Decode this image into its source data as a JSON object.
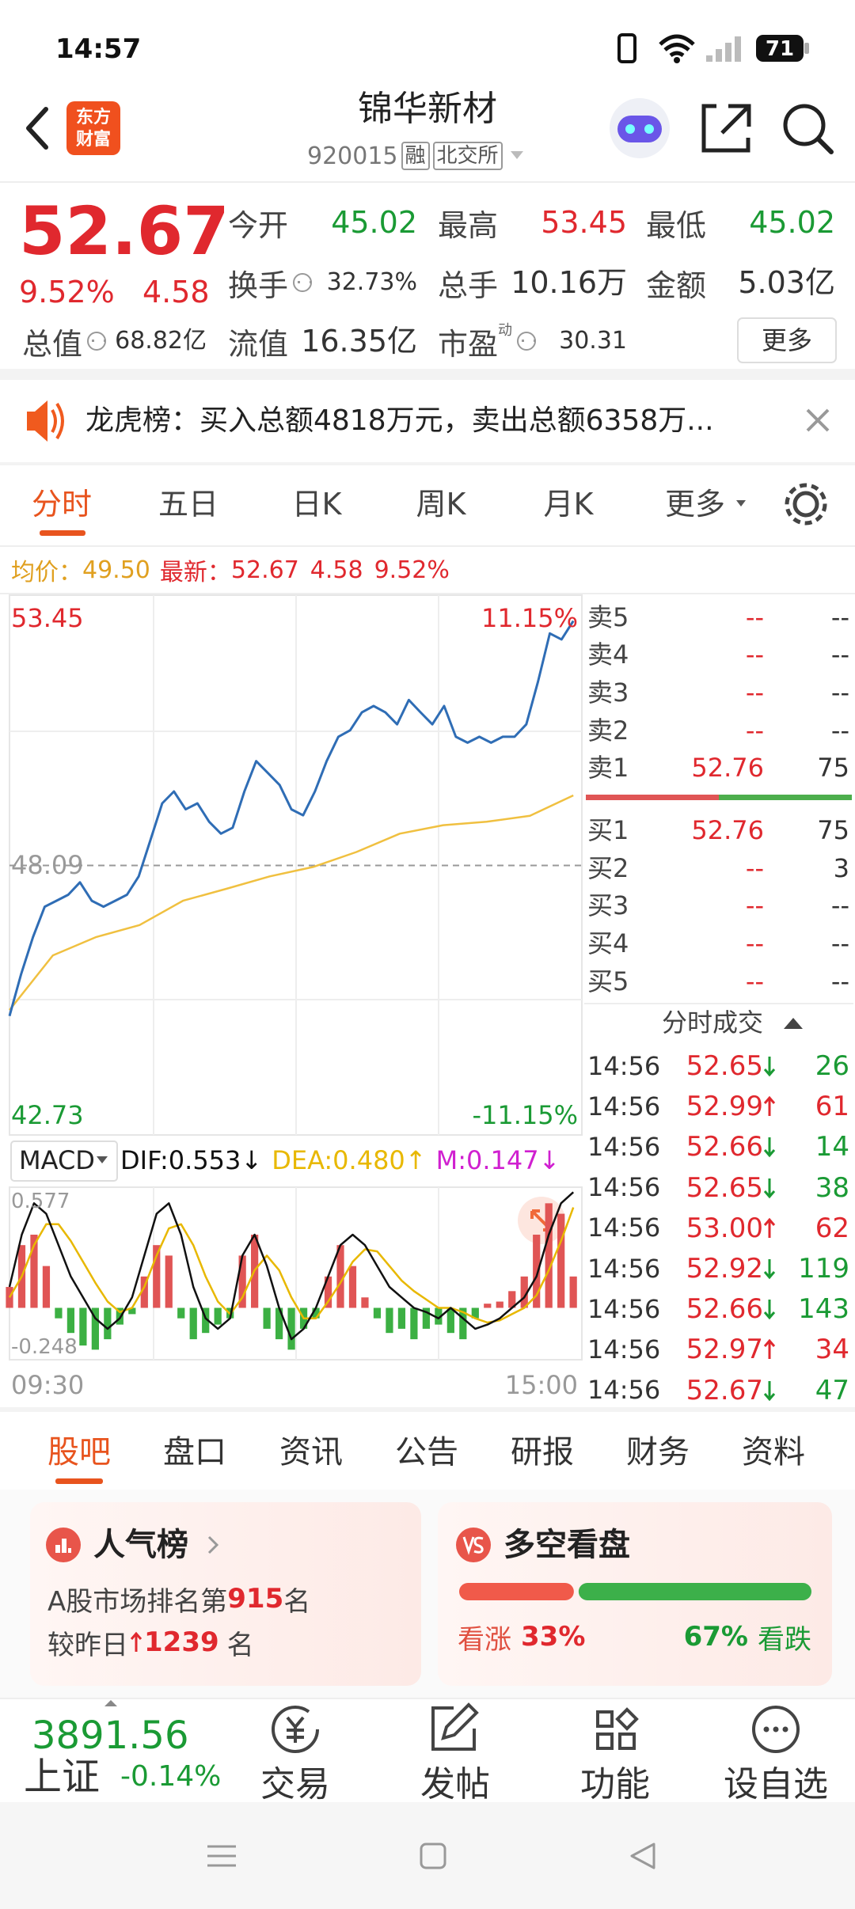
{
  "status_bar": {
    "time": "14:57",
    "battery": "71"
  },
  "header": {
    "logo_top": "东方",
    "logo_bottom": "财富",
    "title": "锦华新材",
    "code": "920015",
    "badges": [
      "融",
      "北交所"
    ]
  },
  "quote": {
    "price": "52.67",
    "change_pct": "9.52%",
    "change": "4.58",
    "fields": [
      {
        "label": "今开",
        "value": "45.02",
        "color": "#1a9a34"
      },
      {
        "label": "最高",
        "value": "53.45",
        "color": "#e0282e"
      },
      {
        "label": "最低",
        "value": "45.02",
        "color": "#1a9a34"
      },
      {
        "label": "换手",
        "value": "32.73%",
        "color": "#333333",
        "info": true
      },
      {
        "label": "总手",
        "value": "10.16万",
        "color": "#333333"
      },
      {
        "label": "金额",
        "value": "5.03亿",
        "color": "#333333"
      },
      {
        "label": "总值",
        "value": "68.82亿",
        "color": "#333333",
        "info": true
      },
      {
        "label": "流值",
        "value": "16.35亿",
        "color": "#333333"
      },
      {
        "label": "市盈",
        "sup": "动",
        "value": "30.31",
        "color": "#333333",
        "info": true
      }
    ],
    "more": "更多"
  },
  "notice": {
    "text": "龙虎榜：买入总额4818万元，卖出总额6358万..."
  },
  "chart_tabs": [
    "分时",
    "五日",
    "日K",
    "周K",
    "月K",
    "更多"
  ],
  "intraday": {
    "avg_label": "均价：",
    "avg": "49.50",
    "latest_label": "最新：",
    "latest": "52.67",
    "change": "4.58",
    "change_pct": "9.52%",
    "ylim": [
      42.73,
      53.45
    ],
    "prev_close": 48.09,
    "pct_top": "11.15%",
    "pct_bottom": "-11.15%",
    "time_start": "09:30",
    "time_end": "15:00",
    "price_color": "#2f6db5",
    "avg_color": "#f0c040",
    "price": [
      45.06,
      45.91,
      46.65,
      47.26,
      47.38,
      47.5,
      47.75,
      47.38,
      47.26,
      47.38,
      47.5,
      47.87,
      48.6,
      49.34,
      49.58,
      49.22,
      49.34,
      48.97,
      48.73,
      48.85,
      49.58,
      50.19,
      49.95,
      49.71,
      49.22,
      49.1,
      49.58,
      50.19,
      50.68,
      50.81,
      51.17,
      51.3,
      51.17,
      50.93,
      51.42,
      51.17,
      50.93,
      51.3,
      50.68,
      50.56,
      50.68,
      50.56,
      50.68,
      50.68,
      50.93,
      51.79,
      52.76,
      52.64,
      53.01
    ],
    "avg_line": [
      45.18,
      46.28,
      46.65,
      46.89,
      47.38,
      47.62,
      47.87,
      48.06,
      48.36,
      48.73,
      48.9,
      48.97,
      49.09,
      49.5
    ]
  },
  "macd": {
    "name": "MACD",
    "dif_label": "DIF:0.553↓",
    "dea_label": "DEA:0.480↑",
    "m_label": "M:0.147↓",
    "ylim": [
      -0.248,
      0.577
    ],
    "hist": [
      0.1,
      0.3,
      0.35,
      0.2,
      -0.05,
      -0.12,
      -0.18,
      -0.2,
      -0.15,
      -0.08,
      -0.03,
      0.15,
      0.3,
      0.25,
      -0.05,
      -0.15,
      -0.12,
      -0.08,
      -0.05,
      0.25,
      0.35,
      -0.1,
      -0.15,
      -0.2,
      -0.1,
      -0.05,
      0.15,
      0.3,
      0.2,
      0.05,
      -0.05,
      -0.12,
      -0.1,
      -0.15,
      -0.1,
      -0.08,
      -0.12,
      -0.15,
      -0.05,
      0.02,
      0.03,
      0.08,
      0.15,
      0.35,
      0.5,
      0.45,
      0.15
    ],
    "dif": [
      0.1,
      0.35,
      0.5,
      0.45,
      0.3,
      0.15,
      0.05,
      -0.05,
      -0.1,
      -0.05,
      0.05,
      0.25,
      0.45,
      0.5,
      0.35,
      0.1,
      -0.05,
      -0.1,
      -0.05,
      0.25,
      0.35,
      0.2,
      0.0,
      -0.15,
      -0.1,
      0.0,
      0.15,
      0.3,
      0.35,
      0.3,
      0.2,
      0.1,
      0.05,
      0.0,
      -0.02,
      -0.05,
      0.0,
      -0.05,
      -0.1,
      -0.08,
      -0.05,
      0.0,
      0.05,
      0.15,
      0.35,
      0.5,
      0.553
    ],
    "dea": [
      0.05,
      0.15,
      0.3,
      0.4,
      0.4,
      0.32,
      0.22,
      0.12,
      0.03,
      -0.02,
      0.0,
      0.1,
      0.25,
      0.38,
      0.4,
      0.3,
      0.15,
      0.03,
      -0.03,
      0.05,
      0.18,
      0.25,
      0.18,
      0.05,
      -0.05,
      -0.05,
      0.03,
      0.12,
      0.22,
      0.28,
      0.27,
      0.2,
      0.13,
      0.08,
      0.04,
      0.0,
      0.0,
      -0.02,
      -0.05,
      -0.07,
      -0.06,
      -0.03,
      0.0,
      0.06,
      0.18,
      0.32,
      0.48
    ],
    "dif_color": "#111111",
    "dea_color": "#e8b800",
    "m_color": "#d020d0",
    "up_color": "#e05555",
    "down_color": "#3cb043"
  },
  "order_book": {
    "asks": [
      {
        "label": "卖5",
        "price": "--",
        "volume": "--"
      },
      {
        "label": "卖4",
        "price": "--",
        "volume": "--"
      },
      {
        "label": "卖3",
        "price": "--",
        "volume": "--"
      },
      {
        "label": "卖2",
        "price": "--",
        "volume": "--"
      },
      {
        "label": "卖1",
        "price": "52.76",
        "volume": "75"
      }
    ],
    "bids": [
      {
        "label": "买1",
        "price": "52.76",
        "volume": "75"
      },
      {
        "label": "买2",
        "price": "--",
        "volume": "3"
      },
      {
        "label": "买3",
        "price": "--",
        "volume": "--"
      },
      {
        "label": "买4",
        "price": "--",
        "volume": "--"
      },
      {
        "label": "买5",
        "price": "--",
        "volume": "--"
      }
    ]
  },
  "trades": {
    "title": "分时成交",
    "rows": [
      {
        "time": "14:56",
        "price": "52.65",
        "dir": "down",
        "volume": "26"
      },
      {
        "time": "14:56",
        "price": "52.99",
        "dir": "up",
        "volume": "61"
      },
      {
        "time": "14:56",
        "price": "52.66",
        "dir": "down",
        "volume": "14"
      },
      {
        "time": "14:56",
        "price": "52.65",
        "dir": "down",
        "volume": "38"
      },
      {
        "time": "14:56",
        "price": "53.00",
        "dir": "up",
        "volume": "62"
      },
      {
        "time": "14:56",
        "price": "52.92",
        "dir": "down",
        "volume": "119"
      },
      {
        "time": "14:56",
        "price": "52.66",
        "dir": "down",
        "volume": "143"
      },
      {
        "time": "14:56",
        "price": "52.97",
        "dir": "up",
        "volume": "34"
      },
      {
        "time": "14:56",
        "price": "52.67",
        "dir": "down",
        "volume": "47"
      }
    ]
  },
  "section_tabs": [
    "股吧",
    "盘口",
    "资讯",
    "公告",
    "研报",
    "财务",
    "资料"
  ],
  "popularity": {
    "title": "人气榜",
    "rank_prefix": "A股市场排名第",
    "rank": "915",
    "rank_suffix": "名",
    "change_prefix": "较昨日",
    "change": "1239",
    "change_suffix": "名"
  },
  "sentiment": {
    "title": "多空看盘",
    "bull_label": "看涨",
    "bull": {
      "value": 33,
      "label": "33%"
    },
    "bear": {
      "value": 67,
      "label": "67%"
    },
    "bear_label": "看跌"
  },
  "index": {
    "value": "3891.56",
    "name": "上证",
    "change": "-0.14%"
  },
  "toolbar": [
    "交易",
    "发帖",
    "功能",
    "设自选"
  ]
}
